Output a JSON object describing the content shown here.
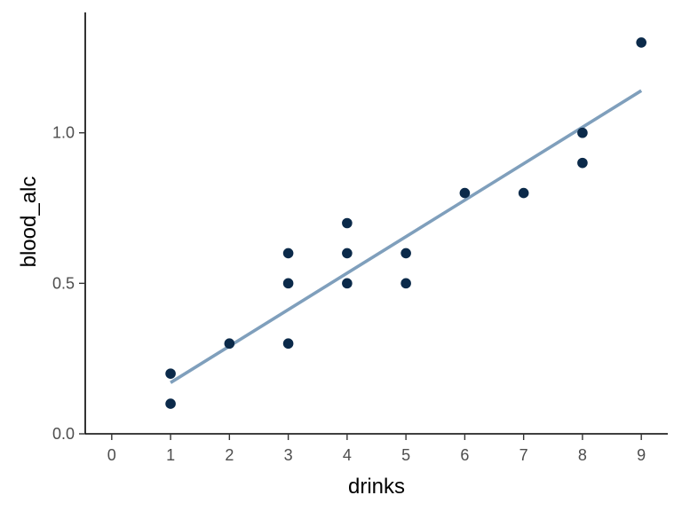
{
  "chart_data": {
    "type": "scatter",
    "xlabel": "drinks",
    "ylabel": "blood_alc",
    "xlim": [
      -0.45,
      9.45
    ],
    "ylim": [
      0,
      1.4
    ],
    "x_ticks": [
      0,
      1,
      2,
      3,
      4,
      5,
      6,
      7,
      8,
      9
    ],
    "x_tick_labels": [
      "0",
      "1",
      "2",
      "3",
      "4",
      "5",
      "6",
      "7",
      "8",
      "9"
    ],
    "y_ticks": [
      0,
      0.5,
      1.0
    ],
    "y_tick_labels": [
      "0.0",
      "0.5",
      "1.0"
    ],
    "grid": false,
    "points": [
      {
        "x": 1,
        "y": 0.2
      },
      {
        "x": 1,
        "y": 0.1
      },
      {
        "x": 2,
        "y": 0.3
      },
      {
        "x": 3,
        "y": 0.6
      },
      {
        "x": 3,
        "y": 0.5
      },
      {
        "x": 3,
        "y": 0.3
      },
      {
        "x": 4,
        "y": 0.7
      },
      {
        "x": 4,
        "y": 0.6
      },
      {
        "x": 4,
        "y": 0.5
      },
      {
        "x": 5,
        "y": 0.6
      },
      {
        "x": 5,
        "y": 0.5
      },
      {
        "x": 6,
        "y": 0.8
      },
      {
        "x": 7,
        "y": 0.8
      },
      {
        "x": 8,
        "y": 1.0
      },
      {
        "x": 8,
        "y": 0.9
      },
      {
        "x": 9,
        "y": 1.3
      }
    ],
    "fit_line": {
      "x": [
        1,
        9
      ],
      "y": [
        0.17,
        1.14
      ]
    },
    "colors": {
      "points": "#0b2a4a",
      "fit_line": "#7f9fbc"
    }
  }
}
